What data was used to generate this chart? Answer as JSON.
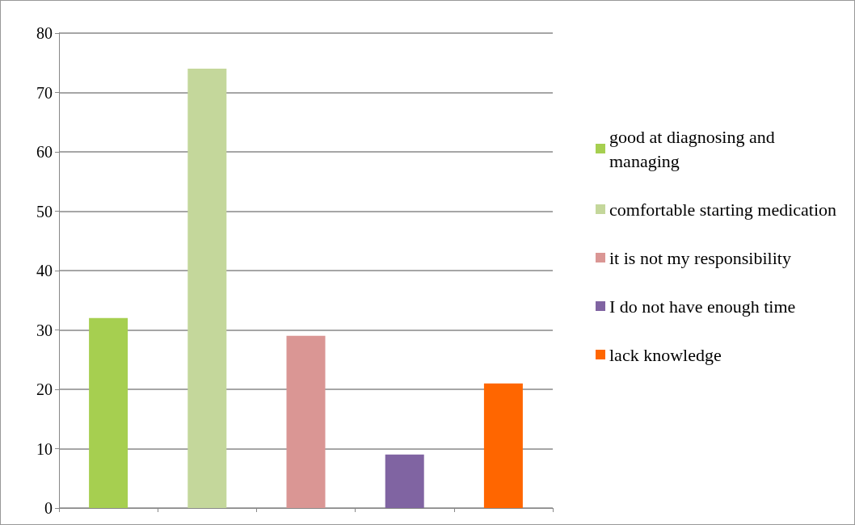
{
  "chart_data": {
    "type": "bar",
    "categories": [
      null,
      null,
      null,
      null,
      null
    ],
    "series": [
      {
        "name": "good at diagnosing and managing",
        "color": "#a6cf50",
        "values": [
          32,
          null,
          null,
          null,
          null
        ]
      },
      {
        "name": "comfortable starting medication",
        "color": "#c4d79b",
        "values": [
          null,
          74,
          null,
          null,
          null
        ]
      },
      {
        "name": "it is not my responsibility",
        "color": "#da9694",
        "values": [
          null,
          null,
          29,
          null,
          null
        ]
      },
      {
        "name": "I do not have enough time",
        "color": "#8064a2",
        "values": [
          null,
          null,
          null,
          9,
          null
        ]
      },
      {
        "name": "lack knowledge",
        "color": "#ff6600",
        "values": [
          null,
          null,
          null,
          null,
          21
        ]
      }
    ],
    "ylim": [
      0,
      80
    ],
    "yticks": [
      0,
      10,
      20,
      30,
      40,
      50,
      60,
      70,
      80
    ],
    "grid": "y",
    "legend": "right"
  }
}
